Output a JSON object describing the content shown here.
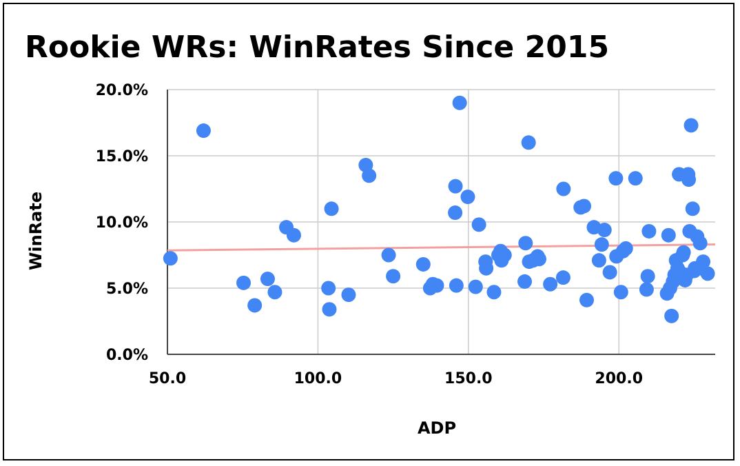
{
  "chart_data": {
    "type": "scatter",
    "title": "Rookie WRs: WinRates Since 2015",
    "xlabel": "ADP",
    "ylabel": "WinRate",
    "xlim": [
      50,
      232
    ],
    "ylim": [
      0,
      0.2
    ],
    "x_ticks": [
      50,
      100,
      150,
      200
    ],
    "x_tick_labels": [
      "50.0",
      "100.0",
      "150.0",
      "200.0"
    ],
    "y_ticks": [
      0,
      0.05,
      0.1,
      0.15,
      0.2
    ],
    "y_tick_labels": [
      "0.0%",
      "5.0%",
      "10.0%",
      "15.0%",
      "20.0%"
    ],
    "grid": true,
    "colors": {
      "points": "#4285F4",
      "trendline": "#F4A0A0",
      "grid": "#cccccc"
    },
    "trendline": {
      "x": [
        50,
        232
      ],
      "y": [
        0.0785,
        0.083
      ]
    },
    "points": [
      [
        51.0,
        0.0725
      ],
      [
        62.0,
        0.169
      ],
      [
        75.3,
        0.054
      ],
      [
        79.0,
        0.037
      ],
      [
        83.3,
        0.057
      ],
      [
        85.7,
        0.047
      ],
      [
        89.5,
        0.096
      ],
      [
        92.0,
        0.09
      ],
      [
        103.5,
        0.05
      ],
      [
        103.8,
        0.034
      ],
      [
        104.5,
        0.11
      ],
      [
        110.2,
        0.045
      ],
      [
        115.9,
        0.143
      ],
      [
        117.0,
        0.135
      ],
      [
        123.5,
        0.075
      ],
      [
        125.0,
        0.059
      ],
      [
        135.0,
        0.068
      ],
      [
        137.3,
        0.05
      ],
      [
        138.2,
        0.053
      ],
      [
        139.5,
        0.052
      ],
      [
        145.7,
        0.127
      ],
      [
        145.6,
        0.107
      ],
      [
        146.0,
        0.052
      ],
      [
        147.1,
        0.19
      ],
      [
        149.8,
        0.119
      ],
      [
        152.4,
        0.051
      ],
      [
        153.5,
        0.098
      ],
      [
        155.7,
        0.07
      ],
      [
        155.9,
        0.065
      ],
      [
        158.5,
        0.047
      ],
      [
        160.0,
        0.075
      ],
      [
        160.7,
        0.078
      ],
      [
        161.0,
        0.071
      ],
      [
        162.0,
        0.075
      ],
      [
        168.7,
        0.055
      ],
      [
        169.0,
        0.084
      ],
      [
        170.0,
        0.16
      ],
      [
        170.2,
        0.07
      ],
      [
        171.5,
        0.071
      ],
      [
        173.0,
        0.074
      ],
      [
        173.5,
        0.072
      ],
      [
        177.2,
        0.053
      ],
      [
        181.5,
        0.058
      ],
      [
        181.6,
        0.125
      ],
      [
        187.3,
        0.111
      ],
      [
        188.4,
        0.112
      ],
      [
        189.3,
        0.041
      ],
      [
        191.7,
        0.096
      ],
      [
        193.4,
        0.071
      ],
      [
        194.3,
        0.083
      ],
      [
        195.2,
        0.094
      ],
      [
        197.0,
        0.062
      ],
      [
        199.0,
        0.133
      ],
      [
        199.2,
        0.074
      ],
      [
        200.7,
        0.047
      ],
      [
        201.4,
        0.078
      ],
      [
        202.3,
        0.08
      ],
      [
        205.5,
        0.133
      ],
      [
        209.2,
        0.049
      ],
      [
        209.6,
        0.059
      ],
      [
        210.0,
        0.093
      ],
      [
        216.0,
        0.046
      ],
      [
        216.5,
        0.09
      ],
      [
        217.0,
        0.05
      ],
      [
        217.5,
        0.029
      ],
      [
        218.0,
        0.055
      ],
      [
        218.5,
        0.06
      ],
      [
        219.0,
        0.071
      ],
      [
        219.5,
        0.065
      ],
      [
        220.0,
        0.136
      ],
      [
        220.3,
        0.062
      ],
      [
        221.2,
        0.075
      ],
      [
        221.5,
        0.077
      ],
      [
        222.0,
        0.056
      ],
      [
        222.5,
        0.06
      ],
      [
        223.0,
        0.136
      ],
      [
        223.2,
        0.132
      ],
      [
        223.5,
        0.093
      ],
      [
        224.0,
        0.173
      ],
      [
        224.5,
        0.11
      ],
      [
        225.0,
        0.063
      ],
      [
        225.3,
        0.065
      ],
      [
        226.0,
        0.089
      ],
      [
        227.0,
        0.084
      ],
      [
        227.5,
        0.065
      ],
      [
        228.0,
        0.07
      ],
      [
        229.5,
        0.061
      ]
    ]
  }
}
